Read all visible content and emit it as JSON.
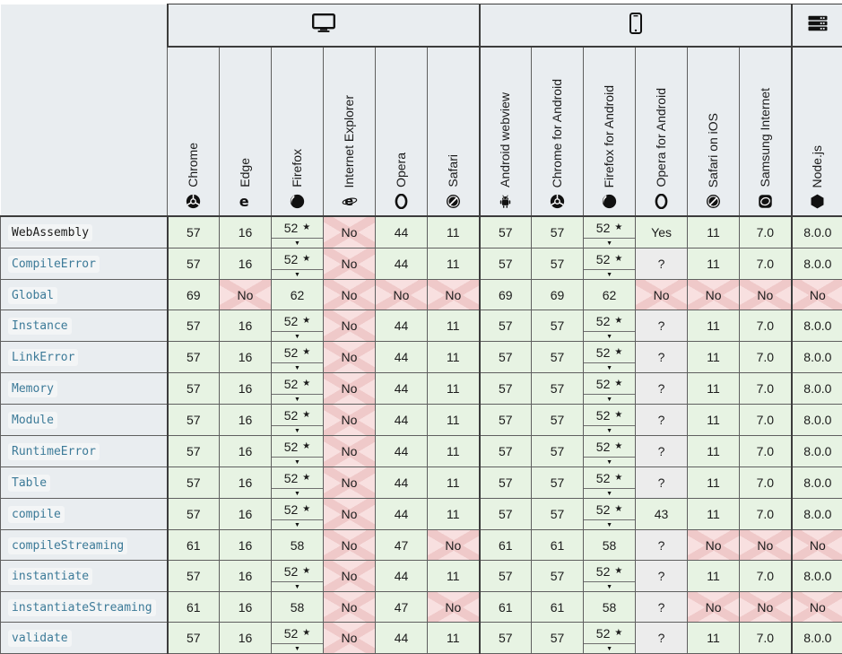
{
  "legend": {
    "star": "★",
    "expand_arrow": "▼"
  },
  "colors": {
    "supported_bg": "#e7f3e3",
    "unsupported_bg": "#f8e0e0",
    "unsupported_cross": "#efc9c9",
    "unknown_bg": "#ececec",
    "header_bg": "#e9edf0",
    "link": "#3c7a98"
  },
  "platforms": [
    {
      "key": "desktop",
      "icon": "desktop-icon",
      "span": 6
    },
    {
      "key": "mobile",
      "icon": "mobile-icon",
      "span": 6
    },
    {
      "key": "server",
      "icon": "server-icon",
      "span": 1
    }
  ],
  "browsers": [
    {
      "label": "Chrome",
      "icon": "chrome-icon"
    },
    {
      "label": "Edge",
      "icon": "edge-icon"
    },
    {
      "label": "Firefox",
      "icon": "firefox-icon"
    },
    {
      "label": "Internet Explorer",
      "icon": "internet-explorer-icon"
    },
    {
      "label": "Opera",
      "icon": "opera-icon"
    },
    {
      "label": "Safari",
      "icon": "safari-icon"
    },
    {
      "label": "Android webview",
      "icon": "android-icon",
      "group_start": true
    },
    {
      "label": "Chrome for Android",
      "icon": "chrome-icon"
    },
    {
      "label": "Firefox for Android",
      "icon": "firefox-icon"
    },
    {
      "label": "Opera for Android",
      "icon": "opera-icon"
    },
    {
      "label": "Safari on iOS",
      "icon": "safari-icon"
    },
    {
      "label": "Samsung Internet",
      "icon": "samsung-internet-icon"
    },
    {
      "label": "Node.js",
      "icon": "nodejs-icon",
      "group_start": true
    }
  ],
  "rows": [
    {
      "feature": "WebAssembly",
      "link": false,
      "cells": [
        {
          "v": "57",
          "st": "y"
        },
        {
          "v": "16",
          "st": "y"
        },
        {
          "v": "52",
          "st": "y",
          "star": true,
          "notes": true
        },
        {
          "v": "No",
          "st": "n"
        },
        {
          "v": "44",
          "st": "y"
        },
        {
          "v": "11",
          "st": "y"
        },
        {
          "v": "57",
          "st": "y"
        },
        {
          "v": "57",
          "st": "y"
        },
        {
          "v": "52",
          "st": "y",
          "star": true,
          "notes": true
        },
        {
          "v": "Yes",
          "st": "y"
        },
        {
          "v": "11",
          "st": "y"
        },
        {
          "v": "7.0",
          "st": "y"
        },
        {
          "v": "8.0.0",
          "st": "y"
        }
      ]
    },
    {
      "feature": "CompileError",
      "link": true,
      "cells": [
        {
          "v": "57",
          "st": "y"
        },
        {
          "v": "16",
          "st": "y"
        },
        {
          "v": "52",
          "st": "y",
          "star": true,
          "notes": true
        },
        {
          "v": "No",
          "st": "n"
        },
        {
          "v": "44",
          "st": "y"
        },
        {
          "v": "11",
          "st": "y"
        },
        {
          "v": "57",
          "st": "y"
        },
        {
          "v": "57",
          "st": "y"
        },
        {
          "v": "52",
          "st": "y",
          "star": true,
          "notes": true
        },
        {
          "v": "?",
          "st": "u"
        },
        {
          "v": "11",
          "st": "y"
        },
        {
          "v": "7.0",
          "st": "y"
        },
        {
          "v": "8.0.0",
          "st": "y"
        }
      ]
    },
    {
      "feature": "Global",
      "link": true,
      "cells": [
        {
          "v": "69",
          "st": "y"
        },
        {
          "v": "No",
          "st": "n"
        },
        {
          "v": "62",
          "st": "y"
        },
        {
          "v": "No",
          "st": "n"
        },
        {
          "v": "No",
          "st": "n"
        },
        {
          "v": "No",
          "st": "n"
        },
        {
          "v": "69",
          "st": "y"
        },
        {
          "v": "69",
          "st": "y"
        },
        {
          "v": "62",
          "st": "y"
        },
        {
          "v": "No",
          "st": "n"
        },
        {
          "v": "No",
          "st": "n"
        },
        {
          "v": "No",
          "st": "n"
        },
        {
          "v": "No",
          "st": "n"
        }
      ]
    },
    {
      "feature": "Instance",
      "link": true,
      "cells": [
        {
          "v": "57",
          "st": "y"
        },
        {
          "v": "16",
          "st": "y"
        },
        {
          "v": "52",
          "st": "y",
          "star": true,
          "notes": true
        },
        {
          "v": "No",
          "st": "n"
        },
        {
          "v": "44",
          "st": "y"
        },
        {
          "v": "11",
          "st": "y"
        },
        {
          "v": "57",
          "st": "y"
        },
        {
          "v": "57",
          "st": "y"
        },
        {
          "v": "52",
          "st": "y",
          "star": true,
          "notes": true
        },
        {
          "v": "?",
          "st": "u"
        },
        {
          "v": "11",
          "st": "y"
        },
        {
          "v": "7.0",
          "st": "y"
        },
        {
          "v": "8.0.0",
          "st": "y"
        }
      ]
    },
    {
      "feature": "LinkError",
      "link": true,
      "cells": [
        {
          "v": "57",
          "st": "y"
        },
        {
          "v": "16",
          "st": "y"
        },
        {
          "v": "52",
          "st": "y",
          "star": true,
          "notes": true
        },
        {
          "v": "No",
          "st": "n"
        },
        {
          "v": "44",
          "st": "y"
        },
        {
          "v": "11",
          "st": "y"
        },
        {
          "v": "57",
          "st": "y"
        },
        {
          "v": "57",
          "st": "y"
        },
        {
          "v": "52",
          "st": "y",
          "star": true,
          "notes": true
        },
        {
          "v": "?",
          "st": "u"
        },
        {
          "v": "11",
          "st": "y"
        },
        {
          "v": "7.0",
          "st": "y"
        },
        {
          "v": "8.0.0",
          "st": "y"
        }
      ]
    },
    {
      "feature": "Memory",
      "link": true,
      "cells": [
        {
          "v": "57",
          "st": "y"
        },
        {
          "v": "16",
          "st": "y"
        },
        {
          "v": "52",
          "st": "y",
          "star": true,
          "notes": true
        },
        {
          "v": "No",
          "st": "n"
        },
        {
          "v": "44",
          "st": "y"
        },
        {
          "v": "11",
          "st": "y"
        },
        {
          "v": "57",
          "st": "y"
        },
        {
          "v": "57",
          "st": "y"
        },
        {
          "v": "52",
          "st": "y",
          "star": true,
          "notes": true
        },
        {
          "v": "?",
          "st": "u"
        },
        {
          "v": "11",
          "st": "y"
        },
        {
          "v": "7.0",
          "st": "y"
        },
        {
          "v": "8.0.0",
          "st": "y"
        }
      ]
    },
    {
      "feature": "Module",
      "link": true,
      "cells": [
        {
          "v": "57",
          "st": "y"
        },
        {
          "v": "16",
          "st": "y"
        },
        {
          "v": "52",
          "st": "y",
          "star": true,
          "notes": true
        },
        {
          "v": "No",
          "st": "n"
        },
        {
          "v": "44",
          "st": "y"
        },
        {
          "v": "11",
          "st": "y"
        },
        {
          "v": "57",
          "st": "y"
        },
        {
          "v": "57",
          "st": "y"
        },
        {
          "v": "52",
          "st": "y",
          "star": true,
          "notes": true
        },
        {
          "v": "?",
          "st": "u"
        },
        {
          "v": "11",
          "st": "y"
        },
        {
          "v": "7.0",
          "st": "y"
        },
        {
          "v": "8.0.0",
          "st": "y"
        }
      ]
    },
    {
      "feature": "RuntimeError",
      "link": true,
      "cells": [
        {
          "v": "57",
          "st": "y"
        },
        {
          "v": "16",
          "st": "y"
        },
        {
          "v": "52",
          "st": "y",
          "star": true,
          "notes": true
        },
        {
          "v": "No",
          "st": "n"
        },
        {
          "v": "44",
          "st": "y"
        },
        {
          "v": "11",
          "st": "y"
        },
        {
          "v": "57",
          "st": "y"
        },
        {
          "v": "57",
          "st": "y"
        },
        {
          "v": "52",
          "st": "y",
          "star": true,
          "notes": true
        },
        {
          "v": "?",
          "st": "u"
        },
        {
          "v": "11",
          "st": "y"
        },
        {
          "v": "7.0",
          "st": "y"
        },
        {
          "v": "8.0.0",
          "st": "y"
        }
      ]
    },
    {
      "feature": "Table",
      "link": true,
      "cells": [
        {
          "v": "57",
          "st": "y"
        },
        {
          "v": "16",
          "st": "y"
        },
        {
          "v": "52",
          "st": "y",
          "star": true,
          "notes": true
        },
        {
          "v": "No",
          "st": "n"
        },
        {
          "v": "44",
          "st": "y"
        },
        {
          "v": "11",
          "st": "y"
        },
        {
          "v": "57",
          "st": "y"
        },
        {
          "v": "57",
          "st": "y"
        },
        {
          "v": "52",
          "st": "y",
          "star": true,
          "notes": true
        },
        {
          "v": "?",
          "st": "u"
        },
        {
          "v": "11",
          "st": "y"
        },
        {
          "v": "7.0",
          "st": "y"
        },
        {
          "v": "8.0.0",
          "st": "y"
        }
      ]
    },
    {
      "feature": "compile",
      "link": true,
      "cells": [
        {
          "v": "57",
          "st": "y"
        },
        {
          "v": "16",
          "st": "y"
        },
        {
          "v": "52",
          "st": "y",
          "star": true,
          "notes": true
        },
        {
          "v": "No",
          "st": "n"
        },
        {
          "v": "44",
          "st": "y"
        },
        {
          "v": "11",
          "st": "y"
        },
        {
          "v": "57",
          "st": "y"
        },
        {
          "v": "57",
          "st": "y"
        },
        {
          "v": "52",
          "st": "y",
          "star": true,
          "notes": true
        },
        {
          "v": "43",
          "st": "y"
        },
        {
          "v": "11",
          "st": "y"
        },
        {
          "v": "7.0",
          "st": "y"
        },
        {
          "v": "8.0.0",
          "st": "y"
        }
      ]
    },
    {
      "feature": "compileStreaming",
      "link": true,
      "cells": [
        {
          "v": "61",
          "st": "y"
        },
        {
          "v": "16",
          "st": "y"
        },
        {
          "v": "58",
          "st": "y"
        },
        {
          "v": "No",
          "st": "n"
        },
        {
          "v": "47",
          "st": "y"
        },
        {
          "v": "No",
          "st": "n"
        },
        {
          "v": "61",
          "st": "y"
        },
        {
          "v": "61",
          "st": "y"
        },
        {
          "v": "58",
          "st": "y"
        },
        {
          "v": "?",
          "st": "u"
        },
        {
          "v": "No",
          "st": "n"
        },
        {
          "v": "No",
          "st": "n"
        },
        {
          "v": "No",
          "st": "n"
        }
      ]
    },
    {
      "feature": "instantiate",
      "link": true,
      "cells": [
        {
          "v": "57",
          "st": "y"
        },
        {
          "v": "16",
          "st": "y"
        },
        {
          "v": "52",
          "st": "y",
          "star": true,
          "notes": true
        },
        {
          "v": "No",
          "st": "n"
        },
        {
          "v": "44",
          "st": "y"
        },
        {
          "v": "11",
          "st": "y"
        },
        {
          "v": "57",
          "st": "y"
        },
        {
          "v": "57",
          "st": "y"
        },
        {
          "v": "52",
          "st": "y",
          "star": true,
          "notes": true
        },
        {
          "v": "?",
          "st": "u"
        },
        {
          "v": "11",
          "st": "y"
        },
        {
          "v": "7.0",
          "st": "y"
        },
        {
          "v": "8.0.0",
          "st": "y"
        }
      ]
    },
    {
      "feature": "instantiateStreaming",
      "link": true,
      "cells": [
        {
          "v": "61",
          "st": "y"
        },
        {
          "v": "16",
          "st": "y"
        },
        {
          "v": "58",
          "st": "y"
        },
        {
          "v": "No",
          "st": "n"
        },
        {
          "v": "47",
          "st": "y"
        },
        {
          "v": "No",
          "st": "n"
        },
        {
          "v": "61",
          "st": "y"
        },
        {
          "v": "61",
          "st": "y"
        },
        {
          "v": "58",
          "st": "y"
        },
        {
          "v": "?",
          "st": "u"
        },
        {
          "v": "No",
          "st": "n"
        },
        {
          "v": "No",
          "st": "n"
        },
        {
          "v": "No",
          "st": "n"
        }
      ]
    },
    {
      "feature": "validate",
      "link": true,
      "cells": [
        {
          "v": "57",
          "st": "y"
        },
        {
          "v": "16",
          "st": "y"
        },
        {
          "v": "52",
          "st": "y",
          "star": true,
          "notes": true
        },
        {
          "v": "No",
          "st": "n"
        },
        {
          "v": "44",
          "st": "y"
        },
        {
          "v": "11",
          "st": "y"
        },
        {
          "v": "57",
          "st": "y"
        },
        {
          "v": "57",
          "st": "y"
        },
        {
          "v": "52",
          "st": "y",
          "star": true,
          "notes": true
        },
        {
          "v": "?",
          "st": "u"
        },
        {
          "v": "11",
          "st": "y"
        },
        {
          "v": "7.0",
          "st": "y"
        },
        {
          "v": "8.0.0",
          "st": "y"
        }
      ]
    }
  ]
}
